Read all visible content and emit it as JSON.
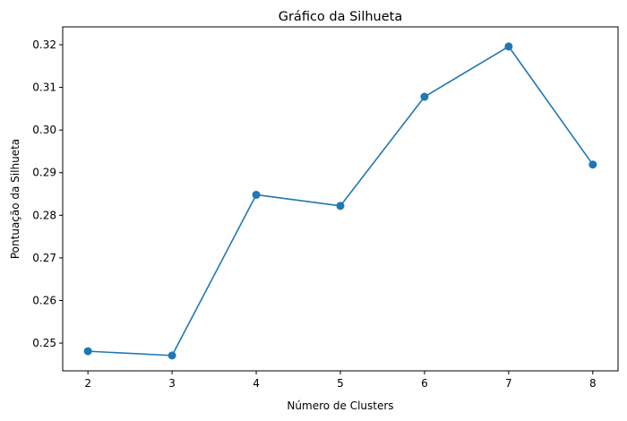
{
  "chart_data": {
    "type": "line",
    "title": "Gráfico da Silhueta",
    "xlabel": "Número de Clusters",
    "ylabel": "Pontuação da Silhueta",
    "x": [
      2,
      3,
      4,
      5,
      6,
      7,
      8
    ],
    "xticks": [
      "2",
      "3",
      "4",
      "5",
      "6",
      "7",
      "8"
    ],
    "series": [
      {
        "values": [
          0.2481,
          0.2471,
          0.2848,
          0.2822,
          0.3078,
          0.3196,
          0.2919
        ]
      }
    ],
    "yticks": [
      0.25,
      0.26,
      0.27,
      0.28,
      0.29,
      0.3,
      0.31,
      0.32
    ],
    "ytick_labels": [
      "0.25",
      "0.26",
      "0.27",
      "0.28",
      "0.29",
      "0.30",
      "0.31",
      "0.32"
    ],
    "xlim": [
      1.7,
      8.3
    ],
    "ylim": [
      0.2435,
      0.3242
    ],
    "grid": false,
    "marker": "circle",
    "color": "#1f77b4"
  }
}
